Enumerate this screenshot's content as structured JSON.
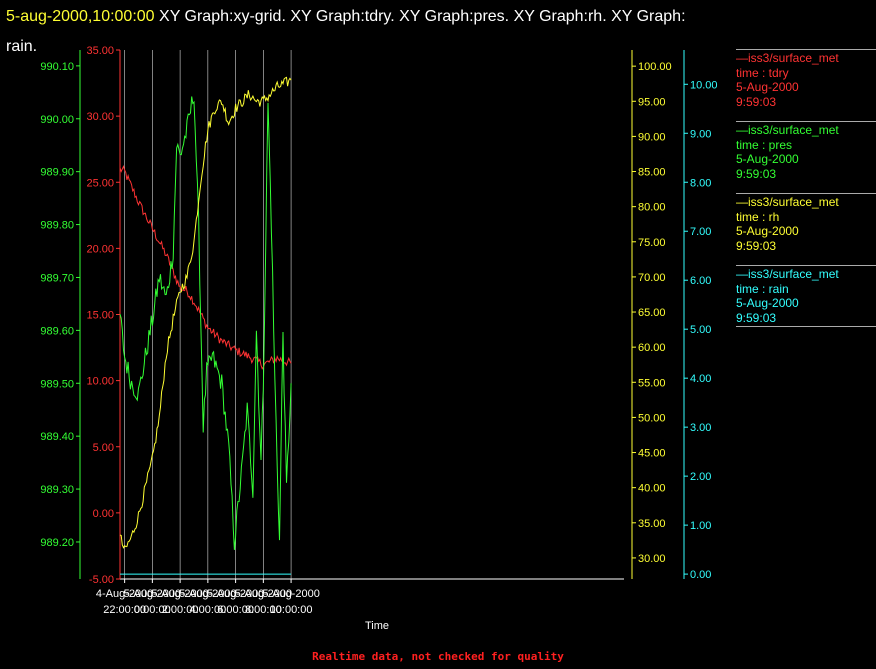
{
  "title": {
    "timestamp": "5-aug-2000,10:00:00",
    "rest_line1": "XY Graph:xy-grid.  XY Graph:tdry.  XY Graph:pres.  XY Graph:rh.  XY Graph:",
    "rest_line2": "rain."
  },
  "footer": "Realtime data, not checked for quality",
  "colors": {
    "tdry": "#ff3333",
    "pres": "#33ff33",
    "rh": "#ffff33",
    "rain": "#33ffff",
    "grid": "#ffffff"
  },
  "legend": [
    {
      "key": "tdry",
      "line1": "—iss3/surface_met",
      "line2": "time : tdry",
      "line3": "5-Aug-2000",
      "line4": "9:59:03"
    },
    {
      "key": "pres",
      "line1": "—iss3/surface_met",
      "line2": "time : pres",
      "line3": "5-Aug-2000",
      "line4": "9:59:03"
    },
    {
      "key": "rh",
      "line1": "—iss3/surface_met",
      "line2": "time : rh",
      "line3": "5-Aug-2000",
      "line4": "9:59:03"
    },
    {
      "key": "rain",
      "line1": "—iss3/surface_met",
      "line2": "time : rain",
      "line3": "5-Aug-2000",
      "line4": "9:59:03"
    }
  ],
  "chart_data": {
    "type": "line",
    "xlabel": "Time",
    "xlim": [
      "2000-08-04 21:40",
      "2000-08-06 10:00"
    ],
    "x_ticks": [
      {
        "t": "2000-08-04 22:00",
        "date": "4-Aug-2000",
        "time": "22:00:00"
      },
      {
        "t": "2000-08-05 00:00",
        "date": "5-Aug-2000",
        "time": "0:00:00"
      },
      {
        "t": "2000-08-05 02:00",
        "date": "5-Aug-2000",
        "time": "2:00:00"
      },
      {
        "t": "2000-08-05 04:00",
        "date": "5-Aug-2000",
        "time": "4:00:00"
      },
      {
        "t": "2000-08-05 06:00",
        "date": "5-Aug-2000",
        "time": "6:00:00"
      },
      {
        "t": "2000-08-05 08:00",
        "date": "5-Aug-2000",
        "time": "8:00:00"
      },
      {
        "t": "2000-08-05 10:00",
        "date": "5-Aug-2000",
        "time": "10:00:00"
      }
    ],
    "grid": "vertical",
    "axes": [
      {
        "key": "tdry",
        "side": "left",
        "ylim": [
          -5,
          35
        ],
        "ticks": [
          "-5.00",
          "0.00",
          "5.00",
          "10.00",
          "15.00",
          "20.00",
          "25.00",
          "30.00",
          "35.00"
        ]
      },
      {
        "key": "pres",
        "side": "left",
        "ylim": [
          989.13,
          990.13
        ],
        "ticks": [
          "989.20",
          "989.30",
          "989.40",
          "989.50",
          "989.60",
          "989.70",
          "989.80",
          "989.90",
          "990.00",
          "990.10"
        ]
      },
      {
        "key": "rh",
        "side": "right",
        "ylim": [
          27,
          102.3
        ],
        "ticks": [
          "30.00",
          "35.00",
          "40.00",
          "45.00",
          "50.00",
          "55.00",
          "60.00",
          "65.00",
          "70.00",
          "75.00",
          "80.00",
          "85.00",
          "90.00",
          "95.00",
          "100.00"
        ]
      },
      {
        "key": "rain",
        "side": "right",
        "ylim": [
          -0.1,
          10.7
        ],
        "ticks": [
          "0.00",
          "1.00",
          "2.00",
          "3.00",
          "4.00",
          "5.00",
          "6.00",
          "7.00",
          "8.00",
          "9.00",
          "10.00"
        ]
      }
    ],
    "series": [
      {
        "key": "tdry",
        "x": [
          "2000-08-04 21:40",
          "2000-08-04 22:00",
          "2000-08-04 23:00",
          "2000-08-05 00:00",
          "2000-08-05 01:00",
          "2000-08-05 02:00",
          "2000-08-05 02:30",
          "2000-08-05 03:00",
          "2000-08-05 03:30",
          "2000-08-05 04:00",
          "2000-08-05 05:00",
          "2000-08-05 06:00",
          "2000-08-05 07:00",
          "2000-08-05 08:00",
          "2000-08-05 09:00",
          "2000-08-05 10:00"
        ],
        "values": [
          26.0,
          25.8,
          23.5,
          21.5,
          19.5,
          17.0,
          16.8,
          16.0,
          15.0,
          14.0,
          13.0,
          12.3,
          11.8,
          11.2,
          11.7,
          11.3
        ]
      },
      {
        "key": "pres",
        "x": [
          "2000-08-04 21:40",
          "2000-08-04 22:00",
          "2000-08-04 22:30",
          "2000-08-04 23:00",
          "2000-08-04 23:30",
          "2000-08-05 00:00",
          "2000-08-05 00:30",
          "2000-08-05 01:00",
          "2000-08-05 01:30",
          "2000-08-05 01:45",
          "2000-08-05 02:00",
          "2000-08-05 02:30",
          "2000-08-05 03:00",
          "2000-08-05 03:20",
          "2000-08-05 03:40",
          "2000-08-05 03:55",
          "2000-08-05 04:20",
          "2000-08-05 05:00",
          "2000-08-05 05:30",
          "2000-08-05 05:55",
          "2000-08-05 06:30",
          "2000-08-05 06:50",
          "2000-08-05 07:15",
          "2000-08-05 07:30",
          "2000-08-05 07:50",
          "2000-08-05 08:00",
          "2000-08-05 08:20",
          "2000-08-05 08:35",
          "2000-08-05 08:50",
          "2000-08-05 09:10",
          "2000-08-05 09:25",
          "2000-08-05 09:40",
          "2000-08-05 10:00"
        ],
        "values": [
          989.63,
          989.55,
          989.5,
          989.48,
          989.55,
          989.62,
          989.7,
          989.66,
          989.75,
          989.95,
          989.93,
          989.98,
          990.05,
          989.8,
          989.42,
          989.52,
          989.55,
          989.5,
          989.38,
          989.2,
          989.35,
          989.45,
          989.3,
          989.6,
          989.35,
          989.5,
          990.03,
          989.8,
          989.5,
          989.2,
          989.6,
          989.3,
          989.5
        ]
      },
      {
        "key": "rh",
        "x": [
          "2000-08-04 21:40",
          "2000-08-04 22:00",
          "2000-08-04 22:30",
          "2000-08-04 23:00",
          "2000-08-04 23:30",
          "2000-08-05 00:00",
          "2000-08-05 00:30",
          "2000-08-05 01:00",
          "2000-08-05 01:30",
          "2000-08-05 02:00",
          "2000-08-05 02:30",
          "2000-08-05 03:00",
          "2000-08-05 03:30",
          "2000-08-05 04:00",
          "2000-08-05 04:30",
          "2000-08-05 05:00",
          "2000-08-05 05:30",
          "2000-08-05 06:00",
          "2000-08-05 06:30",
          "2000-08-05 07:00",
          "2000-08-05 07:30",
          "2000-08-05 08:00",
          "2000-08-05 08:30",
          "2000-08-05 09:00",
          "2000-08-05 09:30",
          "2000-08-05 10:00"
        ],
        "values": [
          33.0,
          31.0,
          33.0,
          36.0,
          40.0,
          44.0,
          50.0,
          59.0,
          64.0,
          68.0,
          70.0,
          75.0,
          84.0,
          91.0,
          94.0,
          95.0,
          92.0,
          94.0,
          95.0,
          96.0,
          95.0,
          95.0,
          96.0,
          97.0,
          97.5,
          98.0
        ]
      },
      {
        "key": "rain",
        "x": [
          "2000-08-04 21:40",
          "2000-08-05 10:00"
        ],
        "values": [
          0.0,
          0.0
        ]
      }
    ]
  }
}
